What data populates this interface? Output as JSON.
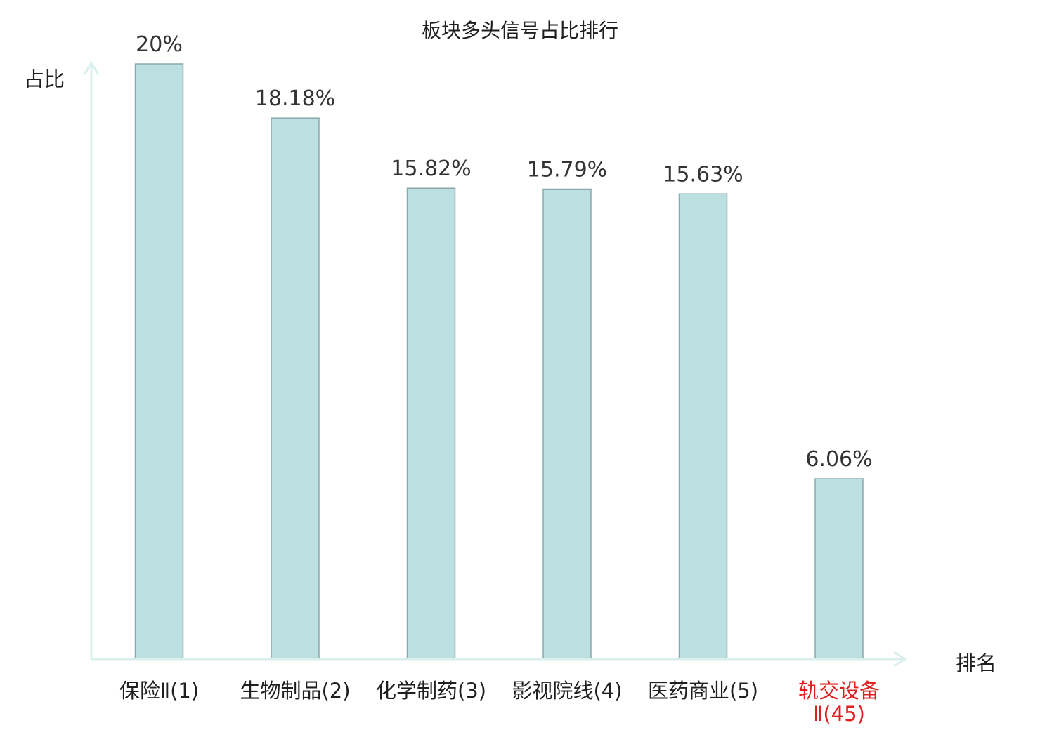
{
  "chart_data": {
    "type": "bar",
    "title": "板块多头信号占比排行",
    "xlabel": "排名",
    "ylabel": "占比",
    "categories": [
      "保险Ⅱ(1)",
      "生物制品(2)",
      "化学制药(3)",
      "影视院线(4)",
      "医药商业(5)",
      "轨交设备Ⅱ(45)"
    ],
    "category_lines": [
      [
        "保险Ⅱ(1)"
      ],
      [
        "生物制品(2)"
      ],
      [
        "化学制药(3)"
      ],
      [
        "影视院线(4)"
      ],
      [
        "医药商业(5)"
      ],
      [
        "轨交设备",
        "Ⅱ(45)"
      ]
    ],
    "values": [
      20,
      18.18,
      15.82,
      15.79,
      15.63,
      6.06
    ],
    "value_labels": [
      "20%",
      "18.18%",
      "15.82%",
      "15.79%",
      "15.63%",
      "6.06%"
    ],
    "ylim": [
      0,
      20
    ],
    "grid": false,
    "legend": "none",
    "highlight_index": 5
  },
  "colors": {
    "bar_fill": "#bce0e2",
    "bar_stroke": "#8aa7aa",
    "axis": "#d9efec",
    "text": "#333333",
    "highlight_text": "#e02020",
    "normal_text": "#1f1f1f"
  }
}
